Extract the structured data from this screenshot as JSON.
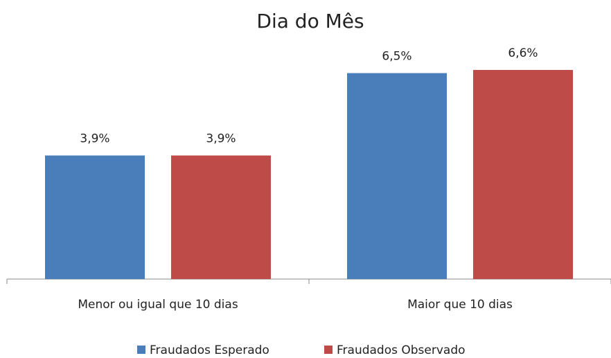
{
  "chart_data": {
    "type": "bar",
    "title": "Dia do Mês",
    "categories": [
      "Menor ou igual que 10 dias",
      "Maior que 10 dias"
    ],
    "series": [
      {
        "name": "Fraudados Esperado",
        "color": "#4a7ebb",
        "values": [
          3.9,
          6.5
        ],
        "value_labels": [
          "3,9%",
          "6,5%"
        ]
      },
      {
        "name": "Fraudados Observado",
        "color": "#be4b48",
        "values": [
          3.9,
          6.6
        ],
        "value_labels": [
          "3,9%",
          "6,6%"
        ]
      }
    ],
    "legend": "bottom"
  }
}
